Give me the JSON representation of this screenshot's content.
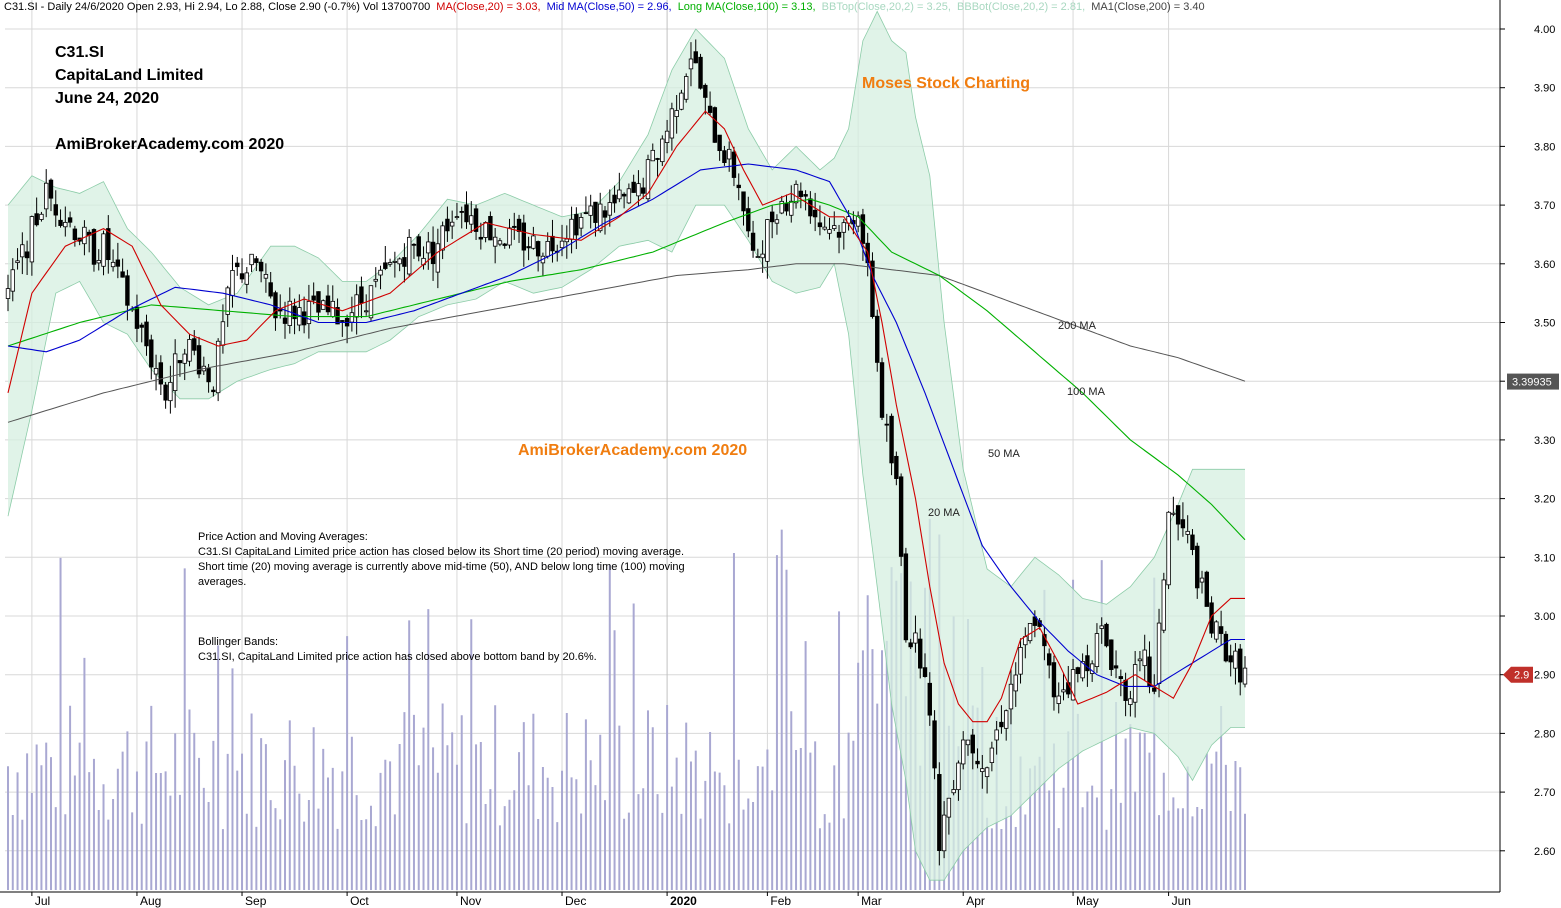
{
  "header": {
    "prefix": "C31.SI - Daily 24/6/2020 Open 2.93, Hi 2.94, Lo 2.88, Close 2.90 (-0.7%) Vol 13700700",
    "items": [
      {
        "text": "MA(Close,20) = 3.03,",
        "color": "#d00000"
      },
      {
        "text": "Mid MA(Close,50) = 2.96,",
        "color": "#0000d0"
      },
      {
        "text": "Long MA(Close,100) = 3.13,",
        "color": "#00b000"
      },
      {
        "text": "BBTop(Close,20,2) = 3.25,",
        "color": "#a8d8c0"
      },
      {
        "text": "BBBot(Close,20,2) = 2.81,",
        "color": "#a8d8c0"
      },
      {
        "text": "MA1(Close,200) = 3.40",
        "color": "#444444"
      }
    ]
  },
  "annotations": {
    "ticker": "C31.SI",
    "company": "CapitaLand Limited",
    "date": "June 24, 2020",
    "site": "AmiBrokerAcademy.com  2020",
    "moses": "Moses Stock Charting",
    "site2": "AmiBrokerAcademy.com 2020",
    "pa_title": "Price Action and Moving Averages:",
    "pa_line1": "C31.SI CapitaLand Limited price action has closed below its Short time (20 period) moving average.",
    "pa_line2": "Short time (20) moving average is currently above mid-time (50), AND below long time (100) moving averages.",
    "bb_title": "Bollinger Bands:",
    "bb_line1": "C31.SI, CapitaLand Limited price action has closed above bottom band by 20.6%.",
    "ma200": "200 MA",
    "ma100": "100 MA",
    "ma50": "50 MA",
    "ma20": "20 MA"
  },
  "chart_data": {
    "type": "candlestick",
    "ylim": [
      2.53,
      4.05
    ],
    "y_ticks": [
      "4.00",
      "3.90",
      "3.80",
      "3.70",
      "3.60",
      "3.50",
      "3.40",
      "3.30",
      "3.20",
      "3.10",
      "3.00",
      "2.90",
      "2.80",
      "2.70",
      "2.60"
    ],
    "x_labels": [
      "Jul",
      "Aug",
      "Sep",
      "Oct",
      "Nov",
      "Dec",
      "2020",
      "Feb",
      "Mar",
      "Apr",
      "May",
      "Jun"
    ],
    "x_label_index": [
      5,
      27,
      49,
      71,
      94,
      116,
      138,
      159,
      178,
      200,
      223,
      243
    ],
    "price_marker": {
      "value": 3.39935,
      "label": "3.39935"
    },
    "close_marker": {
      "value": 2.9,
      "label": "2.9"
    },
    "colors": {
      "band": "#d6efe0",
      "band_edge": "#8ccca8",
      "ma20": "#d00000",
      "ma50": "#0000d0",
      "ma100": "#00b000",
      "ma200": "#555555",
      "volume": "#a9a8d2",
      "up": "#ffffff",
      "down": "#000000",
      "grid": "#d8d8d8"
    },
    "last_values": {
      "open": 2.93,
      "high": 2.94,
      "low": 2.88,
      "close": 2.9,
      "volume": 13700700,
      "ma20": 3.03,
      "ma50": 2.96,
      "ma100": 3.13,
      "ma200": 3.4,
      "bbtop": 3.25,
      "bbbot": 2.81
    },
    "close_path": {
      "x": [
        0,
        8,
        10,
        18,
        20,
        27,
        33,
        37,
        43,
        47,
        52,
        56,
        63,
        70,
        76,
        84,
        89,
        94,
        100,
        106,
        113,
        118,
        127,
        132,
        138,
        143,
        147,
        153,
        156,
        161,
        166,
        170,
        175,
        178,
        181,
        183,
        186,
        188,
        192,
        195,
        200,
        205,
        210,
        215,
        219,
        224,
        229,
        234,
        238,
        240,
        243,
        247,
        252,
        257,
        259
      ],
      "y": [
        3.55,
        3.72,
        3.7,
        3.62,
        3.63,
        3.5,
        3.38,
        3.47,
        3.4,
        3.58,
        3.6,
        3.52,
        3.52,
        3.51,
        3.55,
        3.63,
        3.62,
        3.7,
        3.66,
        3.64,
        3.63,
        3.67,
        3.7,
        3.72,
        3.83,
        3.96,
        3.84,
        3.74,
        3.6,
        3.7,
        3.73,
        3.67,
        3.66,
        3.7,
        3.52,
        3.35,
        3.22,
        2.98,
        2.92,
        2.62,
        2.8,
        2.75,
        2.88,
        3.0,
        2.87,
        2.9,
        2.97,
        2.87,
        2.92,
        2.86,
        3.18,
        3.13,
        2.98,
        2.92,
        2.9
      ]
    },
    "ma20_path": {
      "x": [
        0,
        5,
        12,
        20,
        26,
        32,
        38,
        44,
        50,
        56,
        62,
        70,
        80,
        90,
        100,
        110,
        120,
        128,
        134,
        140,
        146,
        150,
        154,
        158,
        164,
        168,
        172,
        175,
        180,
        183,
        186,
        190,
        193,
        196,
        199,
        202,
        205,
        208,
        212,
        216,
        220,
        224,
        230,
        236,
        240,
        244,
        248,
        252,
        256,
        259
      ],
      "y": [
        3.38,
        3.55,
        3.63,
        3.66,
        3.63,
        3.53,
        3.48,
        3.46,
        3.47,
        3.52,
        3.54,
        3.52,
        3.55,
        3.62,
        3.67,
        3.65,
        3.64,
        3.68,
        3.72,
        3.8,
        3.86,
        3.83,
        3.76,
        3.7,
        3.72,
        3.7,
        3.68,
        3.68,
        3.62,
        3.5,
        3.36,
        3.2,
        3.05,
        2.92,
        2.85,
        2.82,
        2.82,
        2.86,
        2.96,
        2.98,
        2.92,
        2.85,
        2.87,
        2.9,
        2.88,
        2.86,
        2.92,
        3.0,
        3.03,
        3.03
      ]
    },
    "ma50_path": {
      "x": [
        0,
        8,
        15,
        25,
        35,
        45,
        55,
        65,
        75,
        85,
        95,
        105,
        115,
        125,
        135,
        145,
        155,
        165,
        172,
        177,
        181,
        186,
        192,
        198,
        204,
        210,
        216,
        222,
        228,
        234,
        240,
        244,
        248,
        252,
        256,
        259
      ],
      "y": [
        3.46,
        3.45,
        3.47,
        3.52,
        3.56,
        3.55,
        3.53,
        3.5,
        3.5,
        3.52,
        3.55,
        3.58,
        3.62,
        3.67,
        3.71,
        3.76,
        3.77,
        3.76,
        3.74,
        3.67,
        3.58,
        3.5,
        3.38,
        3.25,
        3.12,
        3.05,
        2.99,
        2.94,
        2.9,
        2.88,
        2.88,
        2.9,
        2.92,
        2.94,
        2.96,
        2.96
      ]
    },
    "ma100_path": {
      "x": [
        0,
        15,
        30,
        45,
        60,
        75,
        90,
        105,
        120,
        135,
        150,
        160,
        168,
        172,
        178,
        185,
        195,
        205,
        215,
        225,
        235,
        245,
        252,
        259
      ],
      "y": [
        3.46,
        3.5,
        3.53,
        3.52,
        3.51,
        3.51,
        3.54,
        3.57,
        3.59,
        3.62,
        3.67,
        3.7,
        3.71,
        3.7,
        3.68,
        3.62,
        3.58,
        3.52,
        3.45,
        3.38,
        3.3,
        3.24,
        3.19,
        3.13
      ]
    },
    "ma200_path": {
      "x": [
        0,
        20,
        40,
        60,
        80,
        100,
        120,
        140,
        155,
        165,
        175,
        185,
        195,
        205,
        215,
        225,
        235,
        245,
        259
      ],
      "y": [
        3.33,
        3.38,
        3.42,
        3.45,
        3.49,
        3.52,
        3.55,
        3.58,
        3.59,
        3.6,
        3.6,
        3.59,
        3.58,
        3.55,
        3.52,
        3.49,
        3.46,
        3.44,
        3.4
      ]
    },
    "bbtop_path": {
      "x": [
        0,
        5,
        10,
        15,
        20,
        25,
        30,
        36,
        42,
        48,
        55,
        60,
        65,
        70,
        75,
        80,
        86,
        92,
        98,
        104,
        110,
        116,
        122,
        128,
        134,
        139,
        144,
        150,
        155,
        160,
        165,
        170,
        173,
        176,
        179,
        182,
        185,
        188,
        190,
        193,
        196,
        200,
        205,
        210,
        215,
        220,
        225,
        230,
        235,
        240,
        245,
        248,
        252,
        256,
        259
      ],
      "y": [
        3.7,
        3.75,
        3.73,
        3.72,
        3.74,
        3.66,
        3.62,
        3.56,
        3.53,
        3.55,
        3.63,
        3.63,
        3.61,
        3.57,
        3.57,
        3.6,
        3.65,
        3.71,
        3.7,
        3.72,
        3.7,
        3.68,
        3.69,
        3.74,
        3.82,
        3.93,
        4.0,
        3.95,
        3.83,
        3.76,
        3.8,
        3.76,
        3.78,
        3.83,
        3.98,
        4.03,
        3.98,
        3.96,
        3.85,
        3.75,
        3.5,
        3.25,
        3.08,
        3.05,
        3.1,
        3.07,
        3.03,
        3.02,
        3.05,
        3.1,
        3.19,
        3.25,
        3.25,
        3.25,
        3.25
      ]
    },
    "bbbot_path": {
      "x": [
        0,
        5,
        10,
        15,
        20,
        25,
        30,
        36,
        42,
        48,
        55,
        60,
        65,
        70,
        75,
        80,
        86,
        92,
        98,
        104,
        110,
        116,
        122,
        128,
        134,
        139,
        144,
        150,
        155,
        160,
        165,
        170,
        173,
        176,
        179,
        182,
        185,
        188,
        190,
        193,
        196,
        200,
        205,
        210,
        215,
        220,
        225,
        230,
        235,
        240,
        245,
        248,
        252,
        256,
        259
      ],
      "y": [
        3.17,
        3.35,
        3.55,
        3.57,
        3.5,
        3.48,
        3.42,
        3.37,
        3.37,
        3.4,
        3.42,
        3.43,
        3.45,
        3.45,
        3.45,
        3.47,
        3.51,
        3.53,
        3.54,
        3.57,
        3.55,
        3.56,
        3.59,
        3.63,
        3.64,
        3.62,
        3.7,
        3.7,
        3.64,
        3.57,
        3.55,
        3.56,
        3.6,
        3.48,
        3.24,
        3.05,
        2.85,
        2.72,
        2.6,
        2.55,
        2.55,
        2.6,
        2.64,
        2.66,
        2.7,
        2.74,
        2.77,
        2.79,
        2.81,
        2.8,
        2.76,
        2.72,
        2.78,
        2.81,
        2.81
      ]
    }
  }
}
